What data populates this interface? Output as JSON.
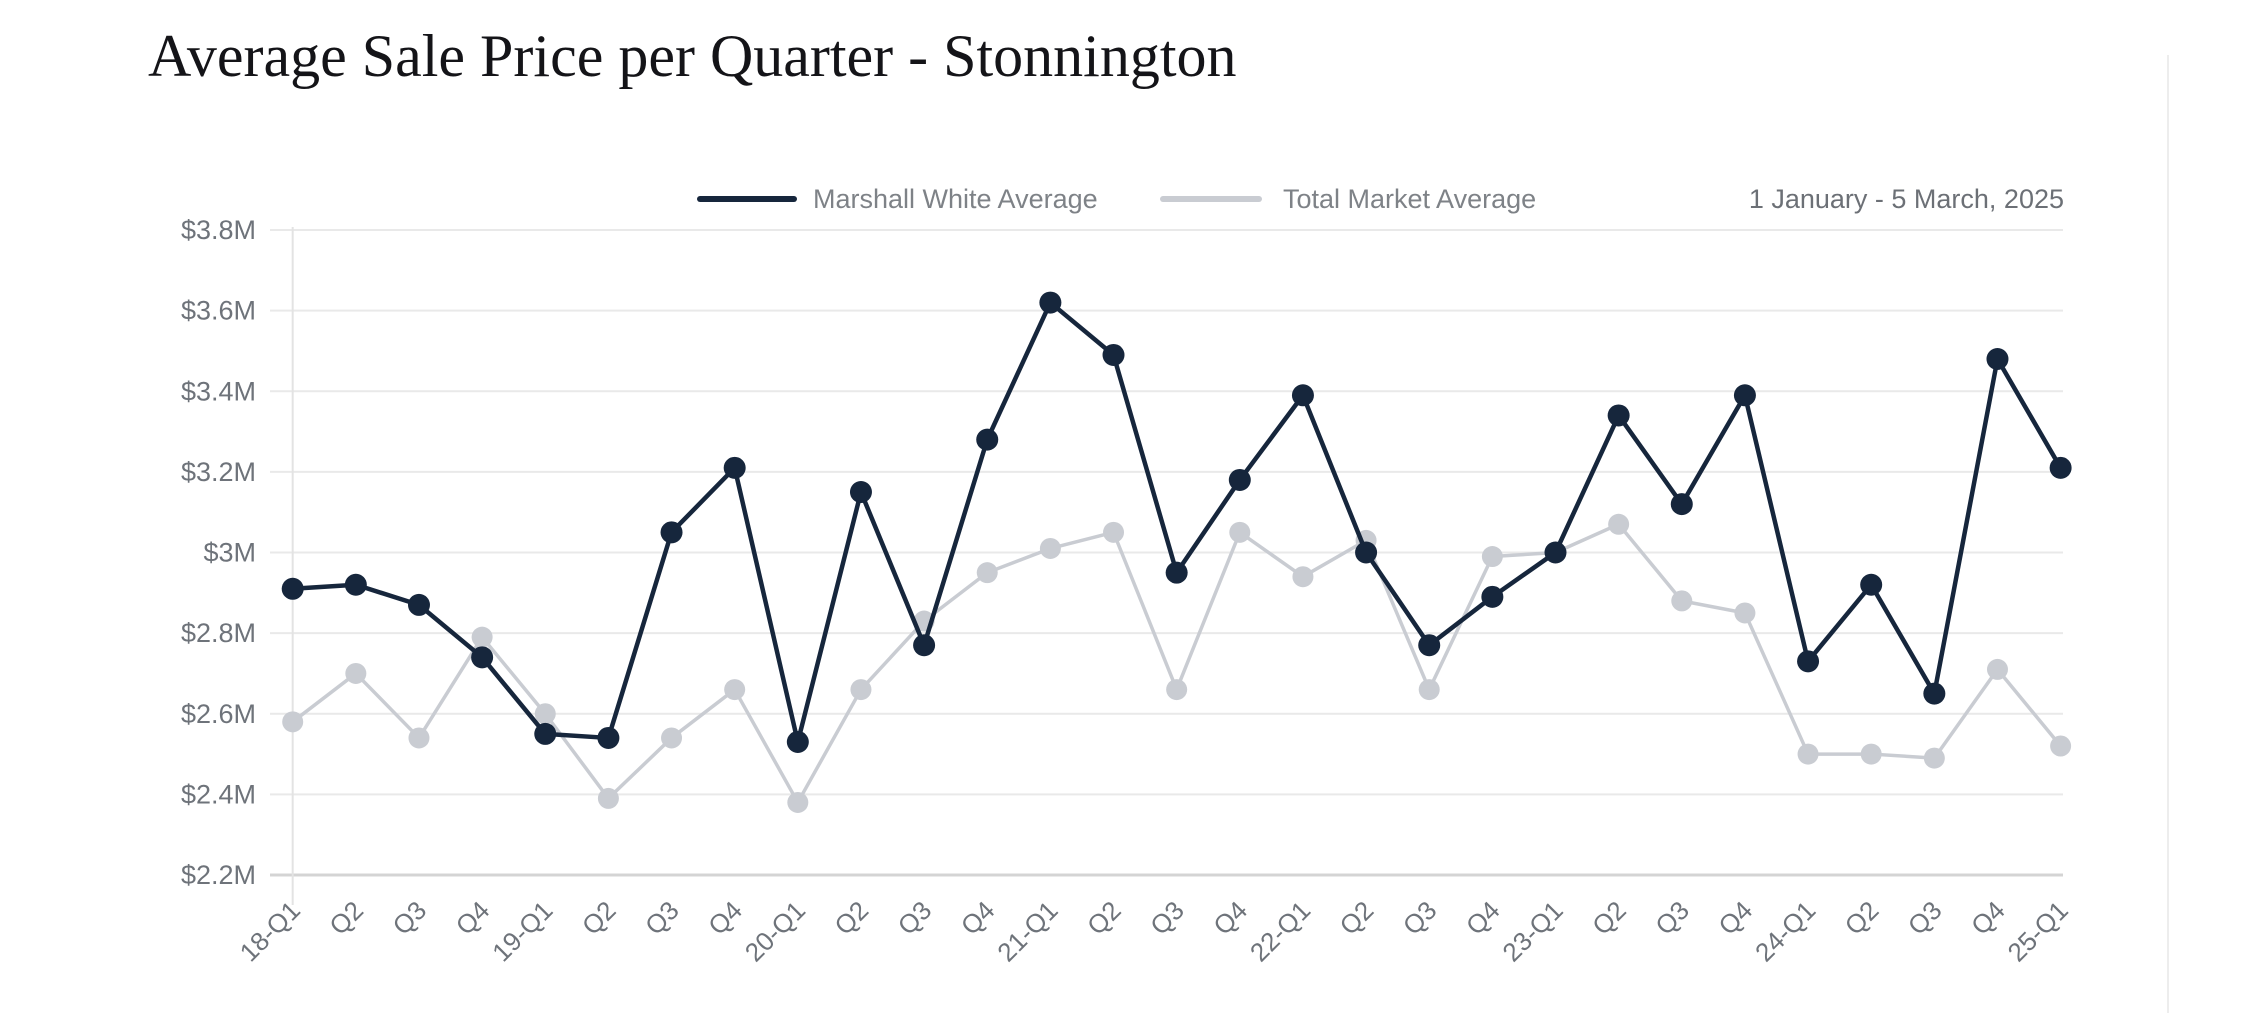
{
  "page": {
    "title": "Average Sale Price per Quarter - Stonnington",
    "date_range": "1 January - 5 March, 2025"
  },
  "legend": [
    {
      "label": "Marshall White Average",
      "color": "#16263c"
    },
    {
      "label": "Total Market Average",
      "color": "#c9ccd2"
    }
  ],
  "chart_data": {
    "type": "line",
    "title": "Average Sale Price per Quarter - Stonnington",
    "subtitle": "1 January - 5 March, 2025",
    "x_labels": [
      "18-Q1",
      "Q2",
      "Q3",
      "Q4",
      "19-Q1",
      "Q2",
      "Q3",
      "Q4",
      "20-Q1",
      "Q2",
      "Q3",
      "Q4",
      "21-Q1",
      "Q2",
      "Q3",
      "Q4",
      "22-Q1",
      "Q2",
      "Q3",
      "Q4",
      "23-Q1",
      "Q2",
      "Q3",
      "Q4",
      "24-Q1",
      "Q2",
      "Q3",
      "Q4",
      "25-Q1"
    ],
    "series": [
      {
        "name": "Marshall White Average",
        "color": "#16263c",
        "line_width": 4.5,
        "marker_radius": 11,
        "values": [
          2.91,
          2.92,
          2.87,
          2.74,
          2.55,
          2.54,
          3.05,
          3.21,
          2.53,
          3.15,
          2.77,
          3.28,
          3.62,
          3.49,
          2.95,
          3.18,
          3.39,
          3.0,
          2.77,
          2.89,
          3.0,
          3.34,
          3.12,
          3.39,
          2.73,
          2.92,
          2.65,
          3.48,
          3.21
        ]
      },
      {
        "name": "Total Market Average",
        "color": "#c9ccd2",
        "line_width": 3.5,
        "marker_radius": 10.5,
        "values": [
          2.58,
          2.7,
          2.54,
          2.79,
          2.6,
          2.39,
          2.54,
          2.66,
          2.38,
          2.66,
          2.83,
          2.95,
          3.01,
          3.05,
          2.66,
          3.05,
          2.94,
          3.03,
          2.66,
          2.99,
          3.0,
          3.07,
          2.88,
          2.85,
          2.5,
          2.5,
          2.49,
          2.71,
          2.52
        ]
      }
    ],
    "y_ticks": [
      "$3.8M",
      "$3.6M",
      "$3.4M",
      "$3.2M",
      "$3M",
      "$2.8M",
      "$2.6M",
      "$2.4M",
      "$2.2M"
    ],
    "y_tick_values": [
      3.8,
      3.6,
      3.4,
      3.2,
      3.0,
      2.8,
      2.6,
      2.4,
      2.2
    ],
    "ylim": [
      2.2,
      3.8
    ],
    "xlabel": "",
    "ylabel": "",
    "grid": "horizontal",
    "legend_position": "top-center"
  },
  "colors": {
    "marshall_white": "#16263c",
    "total_market": "#c9ccd2",
    "gridline": "#e9e9e9",
    "axis_line": "#d4d4d4",
    "tick_label": "#6e737a",
    "legend_text": "#7e8287",
    "title_text": "#141418",
    "page_divider": "#ededed",
    "background": "#ffffff"
  }
}
